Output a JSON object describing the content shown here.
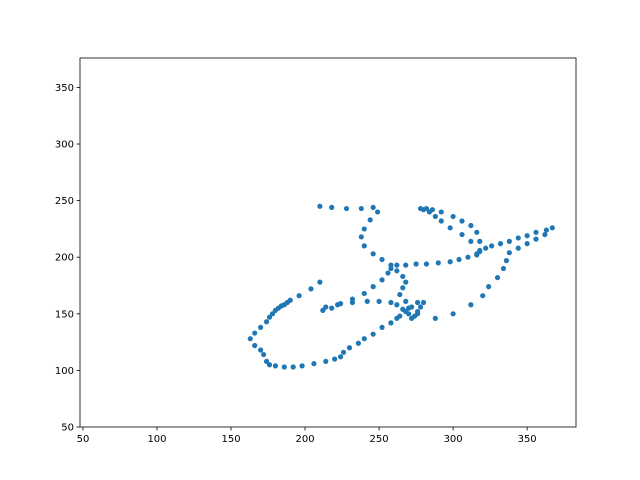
{
  "chart_data": {
    "type": "scatter",
    "title": "",
    "xlabel": "",
    "ylabel": "",
    "xlim": [
      48,
      383
    ],
    "ylim": [
      50,
      376
    ],
    "xticks": [
      50,
      100,
      150,
      200,
      250,
      300,
      350
    ],
    "yticks": [
      50,
      100,
      150,
      200,
      250,
      300,
      350
    ],
    "grid": false,
    "series": [
      {
        "color": "#1f77b4",
        "marker": "circle",
        "x": [
          210,
          218,
          228,
          238,
          246,
          249,
          244,
          240,
          238,
          240,
          246,
          252,
          258,
          262,
          266,
          268,
          266,
          264,
          268,
          270,
          276,
          288,
          300,
          312,
          320,
          324,
          330,
          334,
          336,
          338,
          344,
          350,
          356,
          362,
          367,
          363,
          356,
          350,
          344,
          338,
          332,
          326,
          322,
          318,
          316,
          318,
          316,
          312,
          306,
          300,
          292,
          286,
          282,
          278,
          280,
          284,
          288,
          292,
          298,
          306,
          312,
          318,
          316,
          310,
          304,
          298,
          290,
          282,
          275,
          268,
          262,
          258,
          256,
          252,
          246,
          240,
          232,
          224,
          218,
          212,
          214,
          222,
          232,
          242,
          250,
          258,
          262,
          266,
          270,
          272,
          274,
          276,
          278,
          280,
          276,
          272,
          268,
          264,
          262,
          258,
          252,
          246,
          240,
          236,
          230,
          226,
          224,
          220,
          214,
          206,
          198,
          192,
          186,
          180,
          176,
          174,
          172,
          170,
          166,
          163,
          166,
          170,
          174,
          176,
          178,
          180,
          182,
          184,
          186,
          188,
          190,
          196,
          204,
          210
        ],
        "y": [
          245,
          244,
          243,
          243,
          244,
          240,
          233,
          225,
          218,
          210,
          203,
          198,
          193,
          188,
          183,
          178,
          173,
          167,
          161,
          155,
          150,
          146,
          150,
          158,
          166,
          174,
          182,
          190,
          197,
          204,
          208,
          212,
          216,
          220,
          226,
          224,
          222,
          219,
          217,
          214,
          212,
          210,
          208,
          205,
          203,
          214,
          222,
          228,
          232,
          236,
          240,
          242,
          243,
          243,
          242,
          240,
          236,
          232,
          226,
          220,
          214,
          206,
          202,
          200,
          198,
          196,
          195,
          194,
          194,
          193,
          193,
          190,
          186,
          180,
          174,
          168,
          163,
          159,
          155,
          153,
          156,
          158,
          160,
          161,
          161,
          160,
          158,
          154,
          150,
          146,
          148,
          152,
          156,
          160,
          160,
          156,
          152,
          148,
          146,
          142,
          138,
          132,
          128,
          124,
          120,
          116,
          112,
          110,
          108,
          106,
          104,
          103,
          103,
          104,
          105,
          108,
          114,
          118,
          122,
          128,
          133,
          138,
          143,
          147,
          150,
          153,
          155,
          157,
          158,
          160,
          162,
          166,
          172,
          178
        ]
      }
    ]
  }
}
